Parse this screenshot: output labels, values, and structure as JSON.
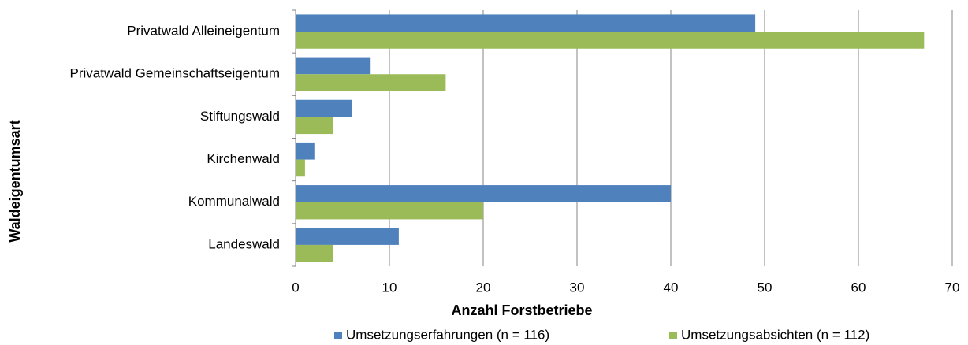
{
  "chart_data": {
    "type": "bar",
    "orientation": "horizontal",
    "categories": [
      "Privatwald Alleineigentum",
      "Privatwald Gemeinschaftseigentum",
      "Stiftungswald",
      "Kirchenwald",
      "Kommunalwald",
      "Landeswald"
    ],
    "series": [
      {
        "name": "Umsetzungserfahrungen (n = 116)",
        "color": "#4f81bd",
        "values": [
          49,
          8,
          6,
          2,
          40,
          11
        ]
      },
      {
        "name": "Umsetzungsabsichten (n = 112)",
        "color": "#9bbb59",
        "values": [
          67,
          16,
          4,
          1,
          20,
          4
        ]
      }
    ],
    "xlim": [
      0,
      70
    ],
    "xticks": [
      0,
      10,
      20,
      30,
      40,
      50,
      60,
      70
    ],
    "x_label": "Anzahl Forstbetriebe",
    "y_label": "Waldeigentumsart",
    "grid": true,
    "legend": "bottom"
  }
}
